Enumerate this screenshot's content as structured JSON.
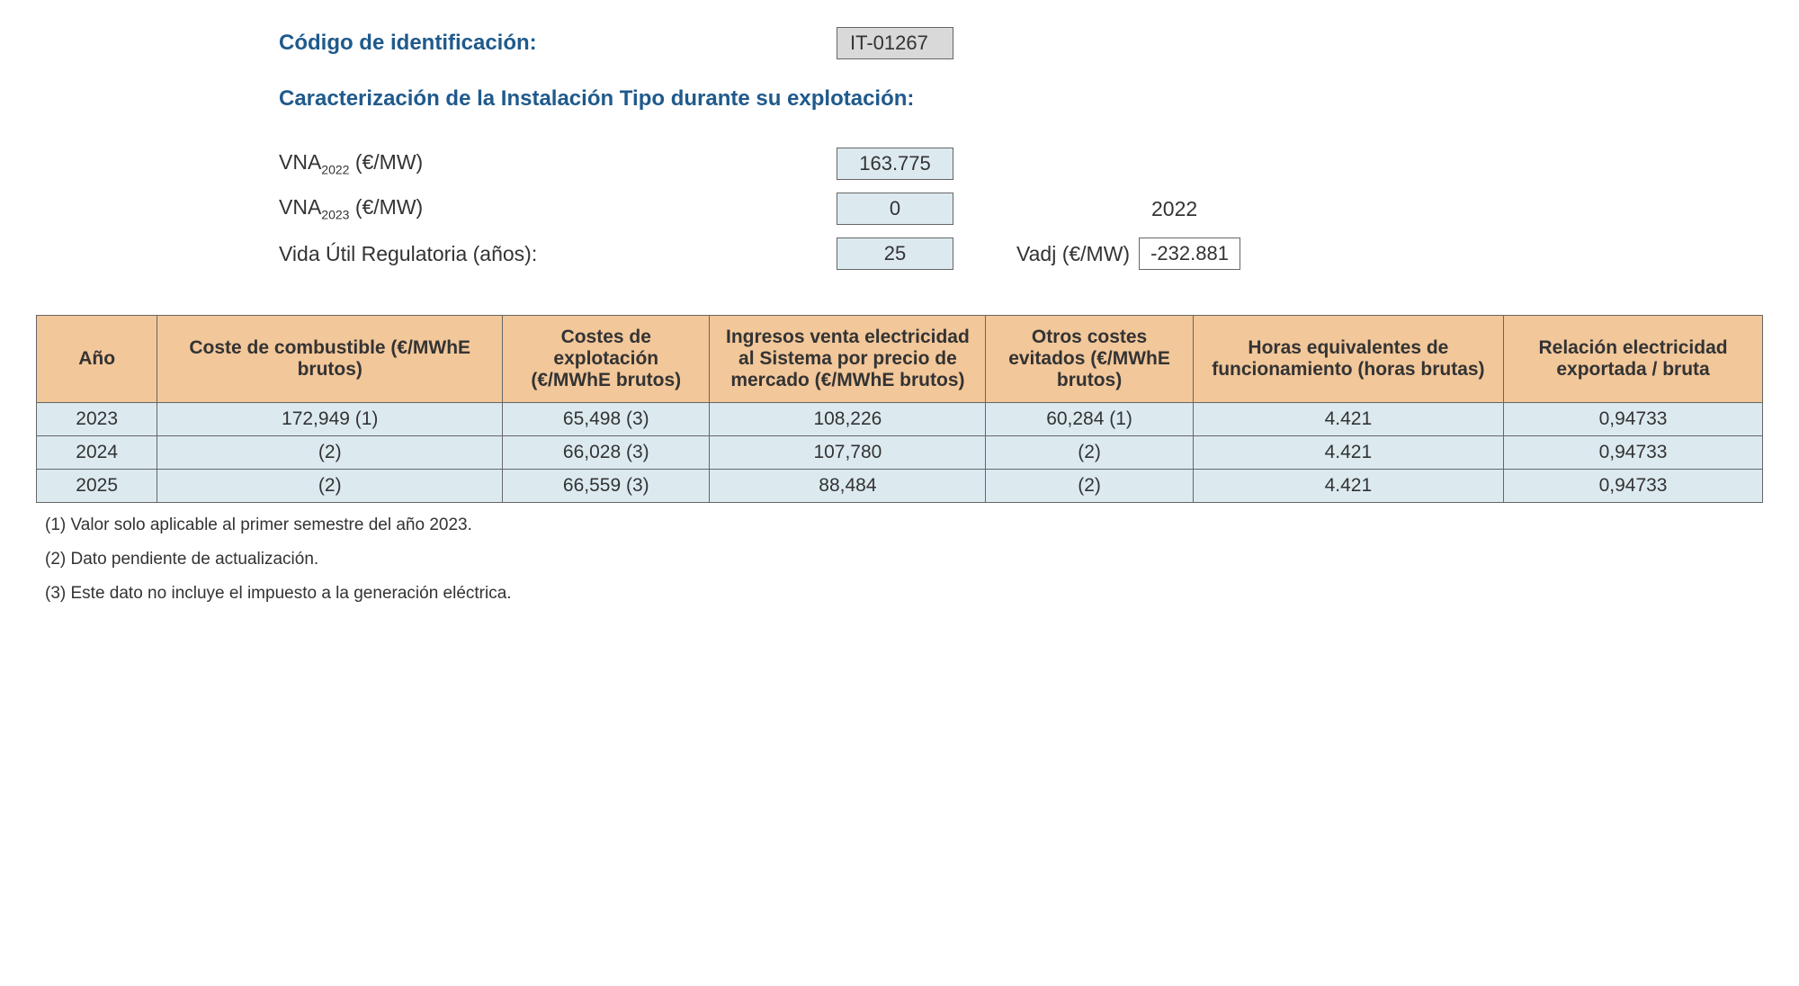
{
  "header": {
    "id_label": "Código de identificación:",
    "id_value": "IT-01267",
    "section_title": "Caracterización de la Instalación Tipo durante su explotación:"
  },
  "params": {
    "vna2022_label_prefix": "VNA",
    "vna2022_sub": "2022",
    "vna2022_unit": " (€/MW)",
    "vna2022_value": "163.775",
    "vna2023_label_prefix": "VNA",
    "vna2023_sub": "2023",
    "vna2023_unit": " (€/MW)",
    "vna2023_value": "0",
    "year_ref": "2022",
    "vida_label": "Vida Útil Regulatoria (años):",
    "vida_value": "25",
    "vadj_label": "Vadj (€/MW)",
    "vadj_value": "-232.881"
  },
  "table": {
    "columns": [
      "Año",
      "Coste de combustible (€/MWhE brutos)",
      "Costes de explotación (€/MWhE brutos)",
      "Ingresos venta electricidad al Sistema por precio de mercado (€/MWhE brutos)",
      "Otros costes evitados (€/MWhE brutos)",
      "Horas equivalentes de funcionamiento (horas brutas)",
      "Relación electricidad exportada / bruta"
    ],
    "rows": [
      [
        "2023",
        "172,949 (1)",
        "65,498 (3)",
        "108,226",
        "60,284 (1)",
        "4.421",
        "0,94733"
      ],
      [
        "2024",
        "(2)",
        "66,028 (3)",
        "107,780",
        "(2)",
        "4.421",
        "0,94733"
      ],
      [
        "2025",
        "(2)",
        "66,559 (3)",
        "88,484",
        "(2)",
        "4.421",
        "0,94733"
      ]
    ],
    "header_bg": "#f2c79a",
    "cell_bg": "#dceaf0",
    "border_color": "#666666"
  },
  "footnotes": [
    "(1) Valor solo aplicable al primer semestre del año 2023.",
    "(2) Dato pendiente de actualización.",
    "(3) Este dato no incluye el impuesto a la generación eléctrica."
  ],
  "colors": {
    "heading": "#1f5a8c",
    "text": "#333333",
    "id_bg": "#d9d9d9",
    "value_bg": "#dceaf0"
  }
}
